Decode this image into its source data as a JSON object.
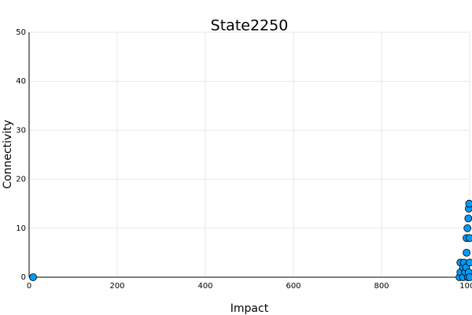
{
  "chart_data": {
    "type": "scatter",
    "title": "State2250",
    "x_label": "Impact",
    "y_label": "Connectivity",
    "xlim": [
      0,
      1000
    ],
    "xticks": [
      0,
      200,
      400,
      600,
      800,
      1000
    ],
    "ylim": [
      0,
      50
    ],
    "yticks": [
      0,
      10,
      20,
      30,
      40,
      50
    ],
    "grid": true,
    "series": [
      {
        "color": "#009af9",
        "x": [
          9,
          977,
          979,
          979,
          985,
          985,
          987,
          990,
          992,
          993,
          993,
          995,
          996,
          997,
          998,
          998,
          999,
          1000,
          1000,
          1000
        ],
        "values": [
          0,
          0,
          1,
          3,
          0,
          2,
          3,
          1,
          2,
          5,
          8,
          10,
          0,
          12,
          14,
          1,
          15,
          0,
          3,
          8
        ]
      }
    ]
  }
}
